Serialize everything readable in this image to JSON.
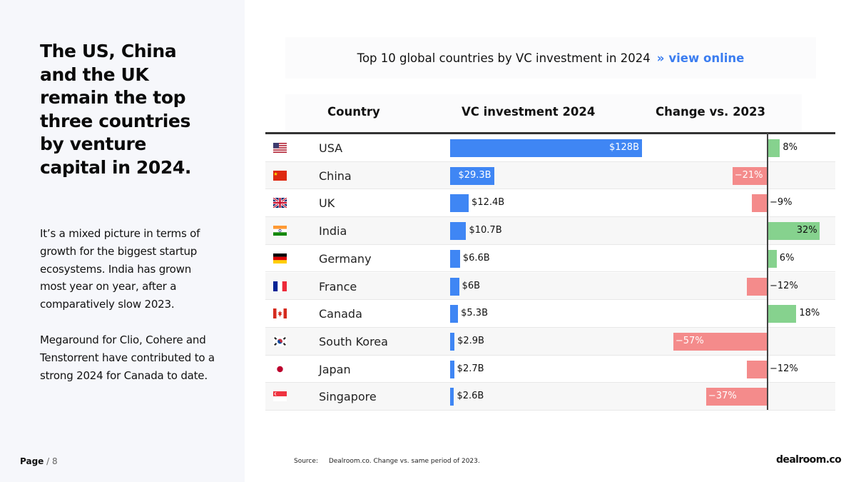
{
  "headline": "The US, China and the UK remain the top three countries by venture capital in 2024.",
  "paragraph_1": "It’s a mixed picture in terms of growth for the biggest startup ecosystems. India has grown most year on year, after a comparatively slow 2023.",
  "paragraph_2": "Megaround for Clio, Cohere and Tenstorrent have contributed to a strong 2024 for Canada to date.",
  "page": {
    "label": "Page",
    "number": "/ 8"
  },
  "chart_title": {
    "text": "Top 10 global countries by VC investment in 2024",
    "separator": "»",
    "link": "view online"
  },
  "source": {
    "label": "Source:",
    "text": "Dealroom.co. Change vs. same period of 2023."
  },
  "logo": "dealroom.co",
  "colors": {
    "vc_bar": "#3f86f4",
    "positive": "#86d28e",
    "negative": "#f48b8b",
    "link": "#3b7df0"
  },
  "chart_data": {
    "type": "table",
    "columns": [
      "Country",
      "VC investment 2024",
      "Change vs. 2023"
    ],
    "units": {
      "vc_investment": "USD billions",
      "change": "percent"
    },
    "rows": [
      {
        "country": "USA",
        "flag": "us-flag",
        "vc_billions": 128,
        "vc_label": "$128B",
        "change_pct": 8,
        "change_label": "8%"
      },
      {
        "country": "China",
        "flag": "china-flag",
        "vc_billions": 29.3,
        "vc_label": "$29.3B",
        "change_pct": -21,
        "change_label": "−21%"
      },
      {
        "country": "UK",
        "flag": "uk-flag",
        "vc_billions": 12.4,
        "vc_label": "$12.4B",
        "change_pct": -9,
        "change_label": "−9%"
      },
      {
        "country": "India",
        "flag": "india-flag",
        "vc_billions": 10.7,
        "vc_label": "$10.7B",
        "change_pct": 32,
        "change_label": "32%"
      },
      {
        "country": "Germany",
        "flag": "germany-flag",
        "vc_billions": 6.6,
        "vc_label": "$6.6B",
        "change_pct": 6,
        "change_label": "6%"
      },
      {
        "country": "France",
        "flag": "france-flag",
        "vc_billions": 6,
        "vc_label": "$6B",
        "change_pct": -12,
        "change_label": "−12%"
      },
      {
        "country": "Canada",
        "flag": "canada-flag",
        "vc_billions": 5.3,
        "vc_label": "$5.3B",
        "change_pct": 18,
        "change_label": "18%"
      },
      {
        "country": "South Korea",
        "flag": "south-korea-flag",
        "vc_billions": 2.9,
        "vc_label": "$2.9B",
        "change_pct": -57,
        "change_label": "−57%"
      },
      {
        "country": "Japan",
        "flag": "japan-flag",
        "vc_billions": 2.7,
        "vc_label": "$2.7B",
        "change_pct": -12,
        "change_label": "−12%"
      },
      {
        "country": "Singapore",
        "flag": "singapore-flag",
        "vc_billions": 2.6,
        "vc_label": "$2.6B",
        "change_pct": -37,
        "change_label": "−37%"
      }
    ]
  }
}
